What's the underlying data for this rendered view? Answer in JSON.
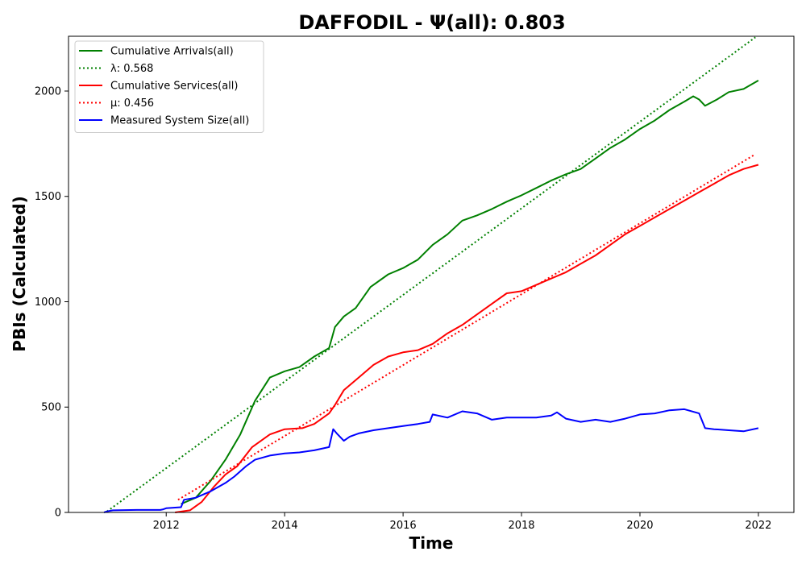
{
  "chart_data": {
    "type": "line",
    "title": "DAFFODIL -  Ψ(all): 0.803",
    "xlabel": "Time",
    "ylabel": "PBIs (Calculated)",
    "xlim": [
      2010.35,
      2022.6
    ],
    "ylim": [
      0,
      2260
    ],
    "x_ticks": [
      "2012",
      "2014",
      "2016",
      "2018",
      "2020",
      "2022"
    ],
    "y_ticks": [
      "0",
      "500",
      "1000",
      "1500",
      "2000"
    ],
    "grid": false,
    "legend_position": "top-left",
    "series": [
      {
        "name": "Cumulative Arrivals(all)",
        "color": "#008000",
        "style": "solid",
        "x": [
          2012.25,
          2012.5,
          2012.75,
          2013.0,
          2013.25,
          2013.5,
          2013.75,
          2014.0,
          2014.25,
          2014.5,
          2014.75,
          2014.85,
          2015.0,
          2015.2,
          2015.45,
          2015.75,
          2016.0,
          2016.25,
          2016.5,
          2016.75,
          2017.0,
          2017.25,
          2017.5,
          2017.75,
          2018.0,
          2018.25,
          2018.5,
          2018.75,
          2019.0,
          2019.25,
          2019.5,
          2019.75,
          2020.0,
          2020.25,
          2020.5,
          2020.75,
          2020.9,
          2021.0,
          2021.1,
          2021.3,
          2021.5,
          2021.75,
          2022.0
        ],
        "values": [
          40,
          70,
          150,
          250,
          370,
          530,
          640,
          670,
          690,
          740,
          780,
          880,
          930,
          970,
          1070,
          1130,
          1160,
          1200,
          1270,
          1320,
          1385,
          1410,
          1440,
          1475,
          1505,
          1540,
          1575,
          1605,
          1630,
          1680,
          1730,
          1770,
          1820,
          1860,
          1910,
          1950,
          1975,
          1960,
          1930,
          1960,
          1995,
          2010,
          2050
        ]
      },
      {
        "name": "λ: 0.568",
        "color": "#008000",
        "style": "dotted",
        "x": [
          2011.0,
          2021.95
        ],
        "values": [
          5,
          2255
        ]
      },
      {
        "name": "Cumulative Services(all)",
        "color": "#ff0000",
        "style": "solid",
        "x": [
          2012.15,
          2012.4,
          2012.6,
          2012.8,
          2013.0,
          2013.2,
          2013.45,
          2013.75,
          2014.0,
          2014.3,
          2014.5,
          2014.75,
          2014.85,
          2015.0,
          2015.25,
          2015.5,
          2015.75,
          2016.0,
          2016.25,
          2016.5,
          2016.75,
          2017.0,
          2017.25,
          2017.5,
          2017.75,
          2018.0,
          2018.25,
          2018.5,
          2018.75,
          2019.0,
          2019.25,
          2019.5,
          2019.75,
          2020.0,
          2020.25,
          2020.5,
          2020.75,
          2021.0,
          2021.25,
          2021.5,
          2021.75,
          2022.0
        ],
        "values": [
          0,
          10,
          50,
          120,
          180,
          220,
          310,
          370,
          395,
          400,
          420,
          470,
          510,
          580,
          640,
          700,
          740,
          760,
          770,
          800,
          850,
          890,
          940,
          990,
          1040,
          1050,
          1080,
          1110,
          1140,
          1180,
          1220,
          1270,
          1320,
          1360,
          1400,
          1440,
          1480,
          1520,
          1560,
          1600,
          1630,
          1650
        ]
      },
      {
        "name": "μ: 0.456",
        "color": "#ff0000",
        "style": "dotted",
        "x": [
          2012.2,
          2021.95
        ],
        "values": [
          60,
          1700
        ]
      },
      {
        "name": "Measured System Size(all)",
        "color": "#0000ff",
        "style": "solid",
        "x": [
          2010.95,
          2011.0,
          2011.1,
          2011.5,
          2011.9,
          2011.95,
          2012.0,
          2012.25,
          2012.3,
          2012.5,
          2012.75,
          2013.0,
          2013.15,
          2013.35,
          2013.5,
          2013.75,
          2014.0,
          2014.25,
          2014.5,
          2014.75,
          2014.82,
          2014.88,
          2015.0,
          2015.1,
          2015.25,
          2015.5,
          2015.75,
          2016.0,
          2016.25,
          2016.45,
          2016.5,
          2016.75,
          2017.0,
          2017.25,
          2017.5,
          2017.75,
          2018.0,
          2018.25,
          2018.5,
          2018.6,
          2018.75,
          2019.0,
          2019.25,
          2019.5,
          2019.75,
          2020.0,
          2020.25,
          2020.5,
          2020.75,
          2021.0,
          2021.1,
          2021.25,
          2021.5,
          2021.75,
          2022.0
        ],
        "values": [
          0,
          5,
          10,
          12,
          12,
          15,
          20,
          25,
          60,
          70,
          100,
          140,
          170,
          220,
          250,
          270,
          280,
          285,
          295,
          310,
          395,
          375,
          340,
          360,
          375,
          390,
          400,
          410,
          420,
          430,
          465,
          450,
          480,
          470,
          440,
          450,
          450,
          450,
          460,
          475,
          445,
          430,
          440,
          430,
          445,
          465,
          470,
          485,
          490,
          470,
          400,
          395,
          390,
          385,
          400
        ]
      }
    ]
  }
}
